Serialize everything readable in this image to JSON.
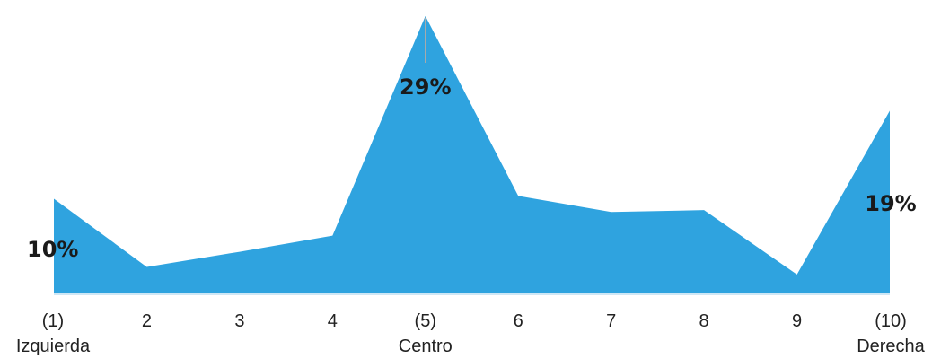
{
  "chart_data": {
    "type": "area",
    "title": "",
    "xlabel": "",
    "ylabel": "",
    "ylim": [
      0,
      30
    ],
    "grid": false,
    "legend": "none",
    "color": "#2fa3df",
    "baseline_color": "#cfe7f5",
    "leader_color": "#aaaaaa",
    "x": [
      "1",
      "2",
      "3",
      "4",
      "5",
      "6",
      "7",
      "8",
      "9",
      "10"
    ],
    "values": [
      10,
      2.8,
      4.4,
      6.1,
      29.3,
      10.3,
      8.6,
      8.8,
      2.0,
      19.3
    ],
    "tick_labels": [
      {
        "line1": "(1)",
        "line2": "Izquierda"
      },
      {
        "line1": "2",
        "line2": ""
      },
      {
        "line1": "3",
        "line2": ""
      },
      {
        "line1": "4",
        "line2": ""
      },
      {
        "line1": "(5)",
        "line2": "Centro"
      },
      {
        "line1": "6",
        "line2": ""
      },
      {
        "line1": "7",
        "line2": ""
      },
      {
        "line1": "8",
        "line2": ""
      },
      {
        "line1": "9",
        "line2": ""
      },
      {
        "line1": "(10)",
        "line2": "Derecha"
      }
    ],
    "data_labels": [
      {
        "index": 0,
        "text": "10%"
      },
      {
        "index": 4,
        "text": "29%"
      },
      {
        "index": 9,
        "text": "19%"
      }
    ]
  }
}
